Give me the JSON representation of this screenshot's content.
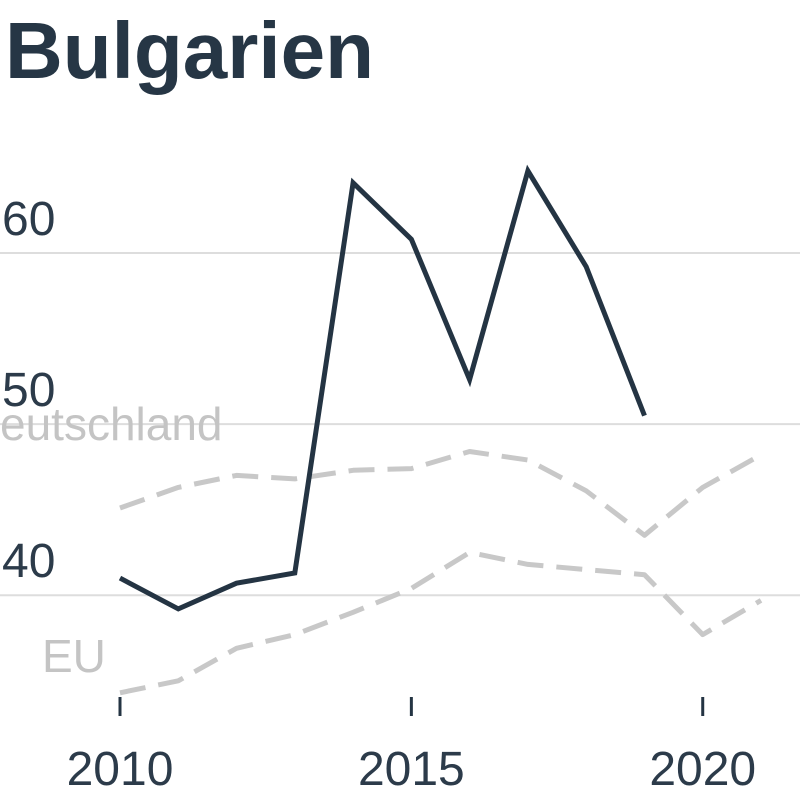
{
  "chart_data": {
    "type": "line",
    "title": "Bulgarien",
    "xlabel": "",
    "ylabel": "",
    "x": [
      2010,
      2011,
      2012,
      2013,
      2014,
      2015,
      2016,
      2017,
      2018,
      2019,
      2020,
      2021
    ],
    "xlim": [
      2010,
      2021
    ],
    "ylim": [
      33,
      69
    ],
    "x_ticks": [
      2010,
      2015,
      2020
    ],
    "x_tick_labels": [
      "2010",
      "2015",
      "2020"
    ],
    "y_ticks": [
      40,
      50,
      60
    ],
    "y_tick_labels": [
      "40",
      "50",
      "60"
    ],
    "grid": true,
    "legend_placement": "inline",
    "series": [
      {
        "values": [
          41.0,
          39.2,
          40.7,
          41.3,
          64.1,
          60.8,
          52.6,
          64.8,
          59.2,
          50.5,
          null,
          null
        ],
        "color": "#243443",
        "dashed": false
      },
      {
        "name": "eutschland",
        "values": [
          45.1,
          46.3,
          47.0,
          46.8,
          47.3,
          47.4,
          48.4,
          47.9,
          46.1,
          43.5,
          46.3,
          48.2
        ],
        "color": "#c8c8c8",
        "dashed": true
      },
      {
        "name": "EU",
        "values": [
          34.3,
          35.0,
          36.9,
          37.7,
          39.0,
          40.4,
          42.5,
          41.8,
          41.5,
          41.2,
          37.7,
          39.7
        ],
        "color": "#c8c8c8",
        "dashed": true
      }
    ],
    "colors": {
      "title": "#263645",
      "axis_text": "#2c3b4a",
      "tick_mark": "#243443",
      "grid": "#dddddd",
      "series_label": "#c4c4c4"
    }
  }
}
